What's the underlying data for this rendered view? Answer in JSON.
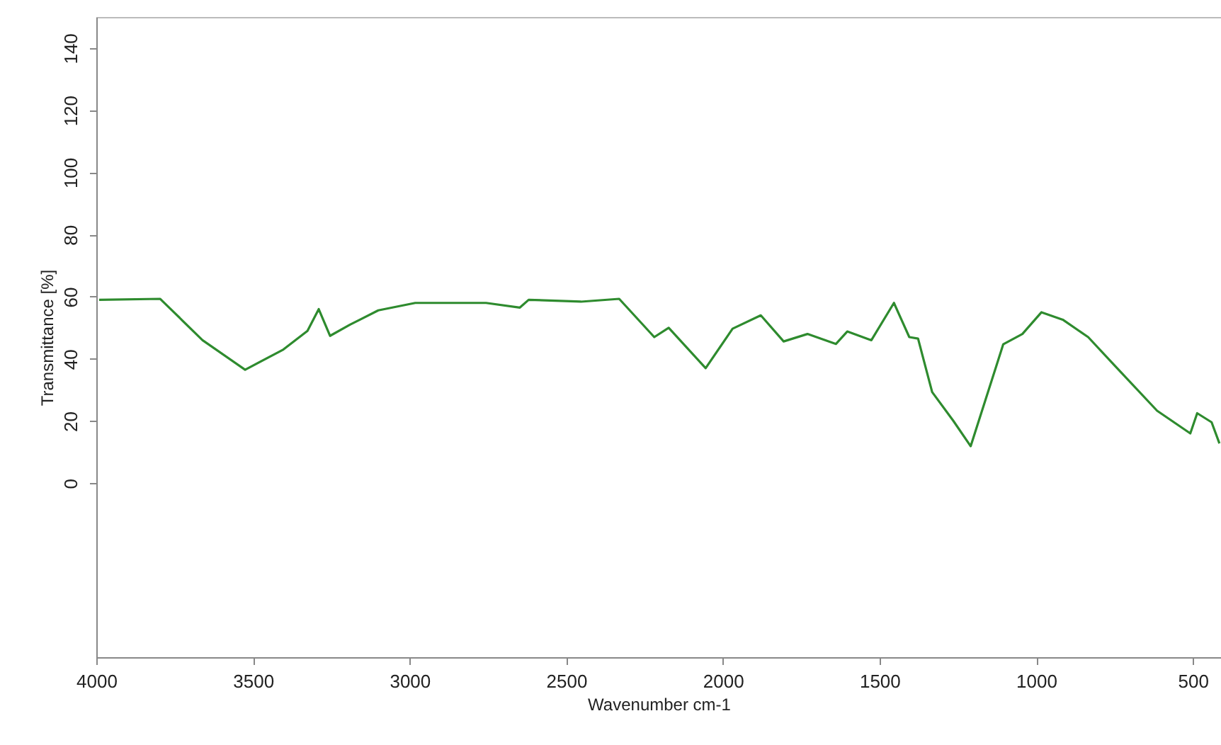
{
  "chart_data": {
    "type": "line",
    "xlabel": "Wavenumber cm-1",
    "ylabel": "Transmittance [%]",
    "x": [
      3991,
      3796,
      3661,
      3525,
      3403,
      3326,
      3290,
      3254,
      3190,
      3100,
      2982,
      2756,
      2648,
      2620,
      2453,
      2331,
      2219,
      2173,
      2055,
      1969,
      1879,
      1806,
      1730,
      1639,
      1603,
      1526,
      1454,
      1405,
      1377,
      1332,
      1264,
      1209,
      1105,
      1044,
      983,
      915,
      834,
      749,
      614,
      508,
      486,
      440,
      415
    ],
    "series": [
      {
        "color": "#2e8b2e",
        "values": [
          59,
          59.3,
          46,
          36.5,
          43,
          49,
          56,
          47.4,
          51,
          55.6,
          58,
          58,
          56.5,
          59,
          58.4,
          59.3,
          47,
          50,
          37,
          49.7,
          54,
          45.6,
          48,
          44.8,
          48.8,
          46,
          58,
          47,
          46.5,
          29.3,
          20,
          11.9,
          44.7,
          48,
          55,
          52.6,
          47,
          37.8,
          23.3,
          16,
          22.5,
          19.6,
          12.8
        ]
      }
    ],
    "xlim": [
      4000,
      410
    ],
    "ylim": [
      -56,
      150
    ],
    "xticks": [
      4000,
      3500,
      3000,
      2500,
      2000,
      1500,
      1000,
      500
    ],
    "yticks": [
      0,
      20,
      40,
      60,
      80,
      100,
      120,
      140
    ],
    "grid": false
  }
}
